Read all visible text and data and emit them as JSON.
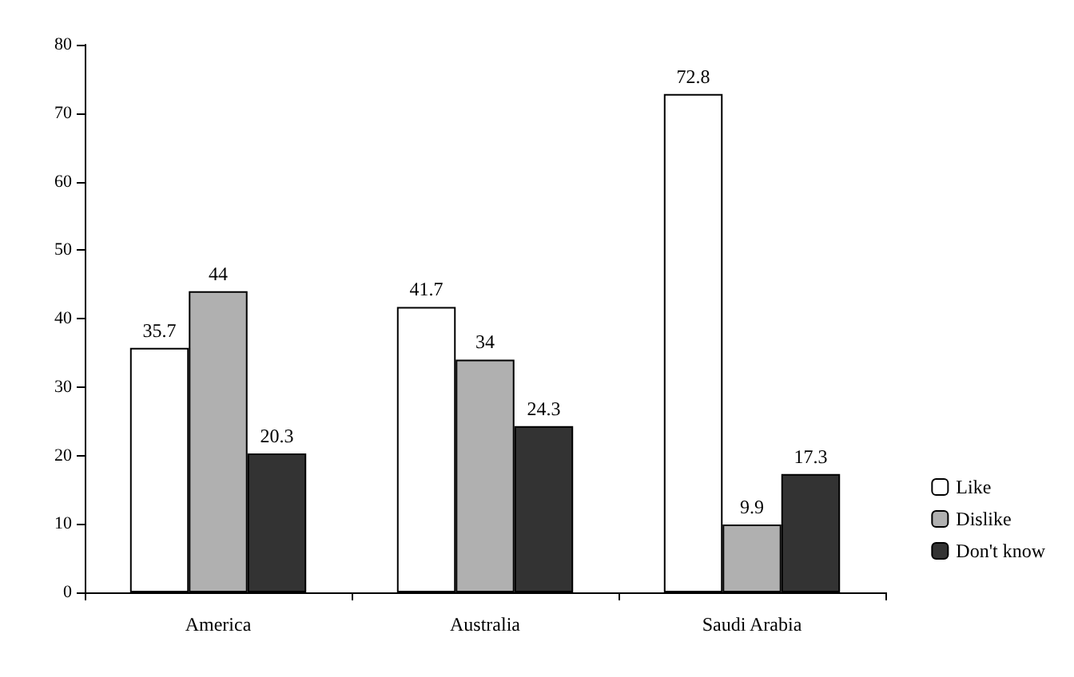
{
  "chart_data": {
    "type": "bar",
    "categories": [
      "America",
      "Australia",
      "Saudi Arabia"
    ],
    "series": [
      {
        "name": "Like",
        "color": "#ffffff",
        "values": [
          35.7,
          41.7,
          72.8
        ]
      },
      {
        "name": "Dislike",
        "color": "#b0b0b0",
        "values": [
          44,
          34,
          9.9
        ]
      },
      {
        "name": "Don't know",
        "color": "#333333",
        "values": [
          20.3,
          24.3,
          17.3
        ]
      }
    ],
    "ylim": [
      0,
      80
    ],
    "yticks": [
      0,
      10,
      20,
      30,
      40,
      50,
      60,
      70,
      80
    ],
    "grid": false,
    "legend": "bottom right",
    "data_labels": true
  }
}
